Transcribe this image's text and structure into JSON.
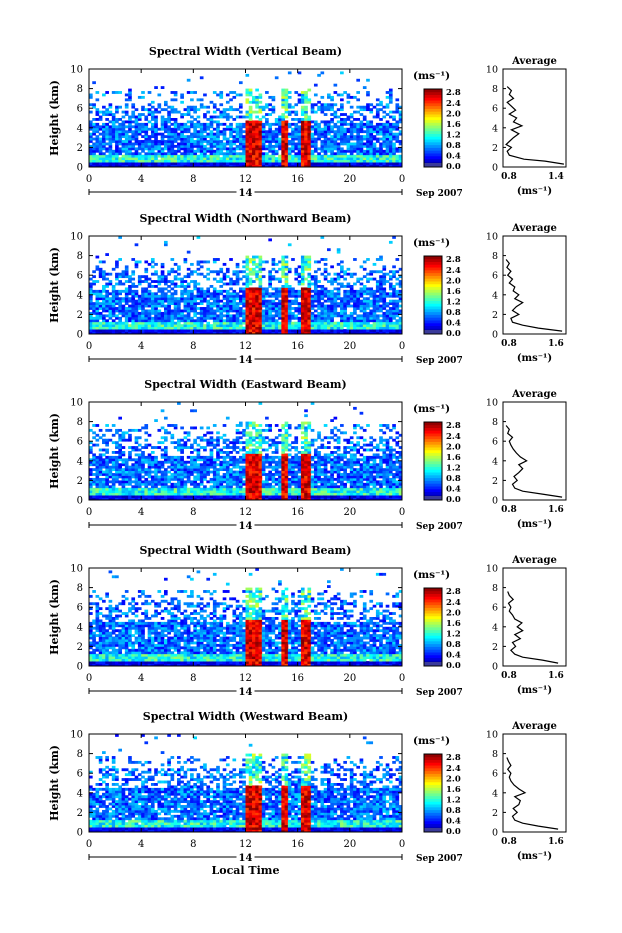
{
  "common": {
    "ylabel": "Height (km)",
    "x_ticks": [
      "0",
      "4",
      "8",
      "12",
      "16",
      "20",
      "0"
    ],
    "x_values": [
      0,
      4,
      8,
      12,
      16,
      20,
      24
    ],
    "y_ticks": [
      "0",
      "2",
      "4",
      "6",
      "8",
      "10"
    ],
    "day_label": "14",
    "date_label": "Sep 2007",
    "colorbar_title": "(ms⁻¹)",
    "colorbar_ticks": [
      "0.0",
      "0.4",
      "0.8",
      "1.2",
      "1.6",
      "2.0",
      "2.4",
      "2.8"
    ],
    "avg_title": "Average",
    "avg_xlabel": "(ms⁻¹)",
    "xlabel": "Local Time"
  },
  "chart_data": [
    {
      "type": "heatmap",
      "title": "Spectral Width (Vertical Beam)",
      "xlim": [
        0,
        24
      ],
      "ylim": [
        0,
        10
      ],
      "clim": [
        0,
        2.8
      ],
      "avg": {
        "type": "line",
        "xlim": [
          0.8,
          1.4
        ],
        "xticks": [
          "0.8",
          "1.4"
        ],
        "ylim": [
          0,
          10
        ],
        "profile": [
          [
            0.3,
            1.38
          ],
          [
            0.6,
            1.2
          ],
          [
            0.8,
            1.0
          ],
          [
            1.2,
            0.86
          ],
          [
            1.6,
            0.84
          ],
          [
            2.0,
            0.88
          ],
          [
            2.3,
            0.83
          ],
          [
            2.6,
            0.86
          ],
          [
            3.0,
            0.9
          ],
          [
            3.4,
            0.95
          ],
          [
            3.8,
            0.88
          ],
          [
            4.2,
            0.98
          ],
          [
            4.6,
            0.9
          ],
          [
            5.0,
            0.93
          ],
          [
            5.4,
            0.86
          ],
          [
            5.8,
            0.92
          ],
          [
            6.2,
            0.88
          ],
          [
            6.6,
            0.84
          ],
          [
            7.0,
            0.9
          ],
          [
            7.4,
            0.86
          ],
          [
            7.8,
            0.88
          ],
          [
            8.2,
            0.84
          ]
        ]
      }
    },
    {
      "type": "heatmap",
      "title": "Spectral Width (Northward Beam)",
      "xlim": [
        0,
        24
      ],
      "ylim": [
        0,
        10
      ],
      "clim": [
        0,
        2.8
      ],
      "avg": {
        "type": "line",
        "xlim": [
          0.8,
          1.6
        ],
        "xticks": [
          "0.8",
          "1.6"
        ],
        "ylim": [
          0,
          10
        ],
        "profile": [
          [
            0.3,
            1.55
          ],
          [
            0.6,
            1.25
          ],
          [
            0.9,
            1.05
          ],
          [
            1.2,
            0.92
          ],
          [
            1.6,
            0.9
          ],
          [
            2.0,
            1.0
          ],
          [
            2.4,
            0.92
          ],
          [
            2.8,
            0.97
          ],
          [
            3.2,
            1.05
          ],
          [
            3.6,
            0.95
          ],
          [
            4.0,
            1.0
          ],
          [
            4.4,
            0.93
          ],
          [
            4.8,
            0.95
          ],
          [
            5.2,
            0.88
          ],
          [
            5.6,
            0.92
          ],
          [
            6.0,
            0.86
          ],
          [
            6.4,
            0.9
          ],
          [
            6.8,
            0.85
          ],
          [
            7.2,
            0.88
          ],
          [
            7.6,
            0.84
          ]
        ]
      }
    },
    {
      "type": "heatmap",
      "title": "Spectral Width (Eastward Beam)",
      "xlim": [
        0,
        24
      ],
      "ylim": [
        0,
        10
      ],
      "clim": [
        0,
        2.8
      ],
      "avg": {
        "type": "line",
        "xlim": [
          0.8,
          1.6
        ],
        "xticks": [
          "0.8",
          "1.6"
        ],
        "ylim": [
          0,
          10
        ],
        "profile": [
          [
            0.3,
            1.55
          ],
          [
            0.6,
            1.3
          ],
          [
            0.9,
            1.05
          ],
          [
            1.2,
            0.95
          ],
          [
            1.6,
            0.92
          ],
          [
            2.0,
            0.98
          ],
          [
            2.4,
            0.94
          ],
          [
            2.8,
            1.0
          ],
          [
            3.2,
            1.05
          ],
          [
            3.6,
            1.0
          ],
          [
            4.0,
            1.1
          ],
          [
            4.4,
            1.02
          ],
          [
            4.8,
            0.97
          ],
          [
            5.2,
            0.93
          ],
          [
            5.6,
            0.9
          ],
          [
            6.0,
            0.88
          ],
          [
            6.4,
            0.92
          ],
          [
            6.8,
            0.86
          ],
          [
            7.2,
            0.88
          ],
          [
            7.6,
            0.84
          ]
        ]
      }
    },
    {
      "type": "heatmap",
      "title": "Spectral Width (Southward Beam)",
      "xlim": [
        0,
        24
      ],
      "ylim": [
        0,
        10
      ],
      "clim": [
        0,
        2.8
      ],
      "avg": {
        "type": "line",
        "xlim": [
          0.8,
          1.6
        ],
        "xticks": [
          "0.8",
          "1.6"
        ],
        "ylim": [
          0,
          10
        ],
        "profile": [
          [
            0.3,
            1.5
          ],
          [
            0.6,
            1.3
          ],
          [
            0.9,
            1.05
          ],
          [
            1.2,
            0.95
          ],
          [
            1.6,
            0.9
          ],
          [
            2.0,
            0.96
          ],
          [
            2.4,
            0.92
          ],
          [
            2.8,
            1.02
          ],
          [
            3.2,
            0.95
          ],
          [
            3.6,
            1.05
          ],
          [
            4.0,
            0.98
          ],
          [
            4.4,
            1.04
          ],
          [
            4.8,
            0.95
          ],
          [
            5.2,
            0.92
          ],
          [
            5.6,
            0.88
          ],
          [
            6.0,
            0.9
          ],
          [
            6.4,
            0.87
          ],
          [
            6.8,
            0.93
          ],
          [
            7.2,
            0.88
          ],
          [
            7.6,
            0.86
          ]
        ]
      }
    },
    {
      "type": "heatmap",
      "title": "Spectral Width (Westward Beam)",
      "xlim": [
        0,
        24
      ],
      "ylim": [
        0,
        10
      ],
      "clim": [
        0,
        2.8
      ],
      "avg": {
        "type": "line",
        "xlim": [
          0.8,
          1.6
        ],
        "xticks": [
          "0.8",
          "1.6"
        ],
        "ylim": [
          0,
          10
        ],
        "profile": [
          [
            0.3,
            1.5
          ],
          [
            0.6,
            1.25
          ],
          [
            0.9,
            1.05
          ],
          [
            1.2,
            0.95
          ],
          [
            1.6,
            0.92
          ],
          [
            2.0,
            0.98
          ],
          [
            2.4,
            0.93
          ],
          [
            2.8,
            1.0
          ],
          [
            3.2,
            1.02
          ],
          [
            3.6,
            0.95
          ],
          [
            4.0,
            1.08
          ],
          [
            4.4,
            1.0
          ],
          [
            4.8,
            0.94
          ],
          [
            5.2,
            0.9
          ],
          [
            5.6,
            0.88
          ],
          [
            6.0,
            0.9
          ],
          [
            6.4,
            0.86
          ],
          [
            6.8,
            0.9
          ],
          [
            7.2,
            0.87
          ],
          [
            7.6,
            0.85
          ]
        ]
      }
    }
  ]
}
